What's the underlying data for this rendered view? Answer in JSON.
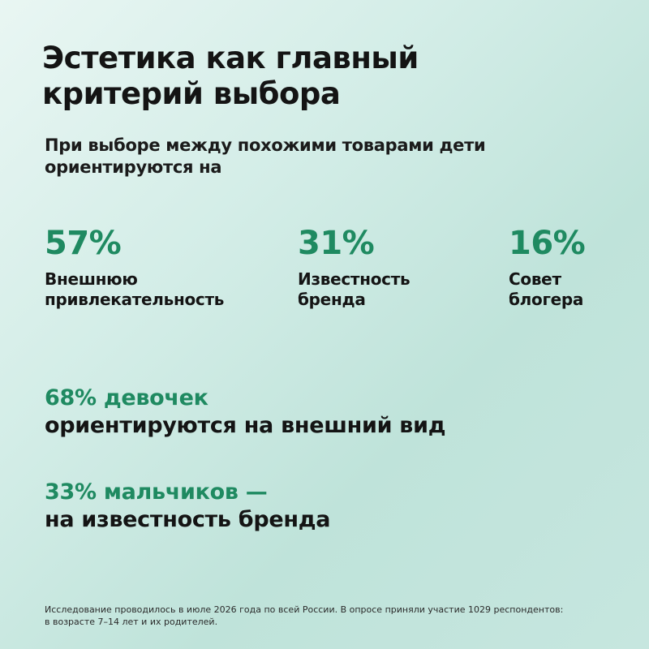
{
  "title": {
    "line1": "Эстетика как главный",
    "line2": "критерий выбора"
  },
  "subtitle": {
    "line1": "При выборе между похожими товарами дети",
    "line2": "ориентируются на"
  },
  "stats": [
    {
      "value": "57%",
      "label_line1": "Внешнюю",
      "label_line2": "привлекательность"
    },
    {
      "value": "31%",
      "label_line1": "Известность",
      "label_line2": "бренда"
    },
    {
      "value": "16%",
      "label_line1": "Совет",
      "label_line2": "блогера"
    }
  ],
  "facts": [
    {
      "accent": "68% девочек",
      "text": "ориентируются на внешний вид"
    },
    {
      "accent": "33% мальчиков —",
      "text": "на известность бренда"
    }
  ],
  "footnote": {
    "line1": "Исследование проводилось в июле 2026 года по всей России. В опросе приняли участие 1029 респондентов:",
    "line2": "в возрасте 7–14 лет и их родителей."
  },
  "colors": {
    "accent": "#1f8a61",
    "text": "#141414",
    "background_start": "#e9f6f3",
    "background_end": "#c6e6df"
  }
}
